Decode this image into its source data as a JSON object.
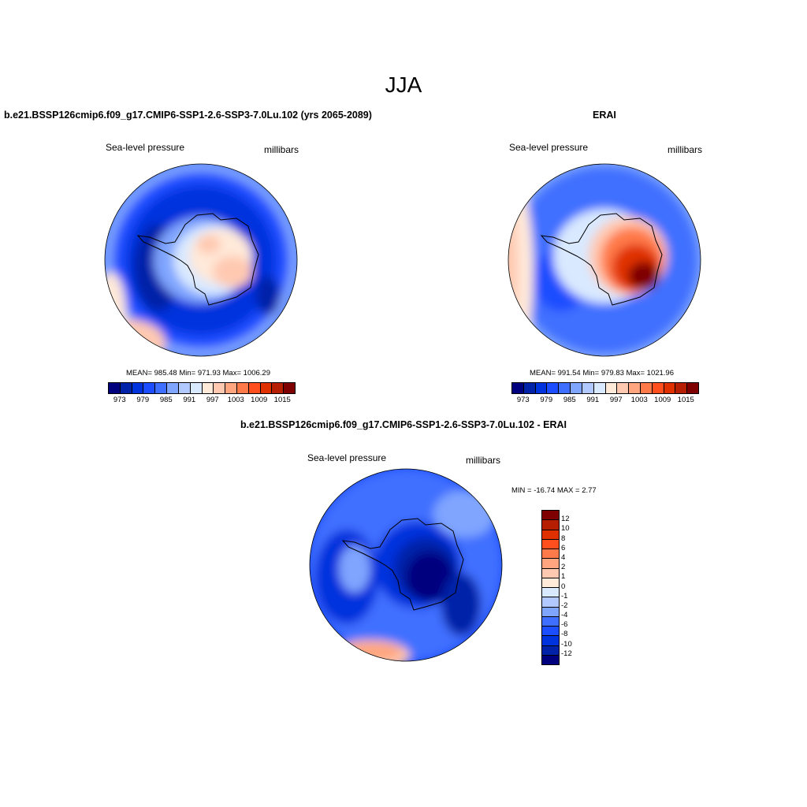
{
  "title": "JJA",
  "panels": [
    {
      "title": "b.e21.BSSP126cmip6.f09_g17.CMIP6-SSP1-2.6-SSP3-7.0Lu.102 (yrs 2065-2089)",
      "left_label": "Sea-level pressure",
      "right_label": "millibars",
      "stats": "MEAN= 985.48  Min= 971.93  Max= 1006.29"
    },
    {
      "title": "ERAI",
      "left_label": "Sea-level pressure",
      "right_label": "millibars",
      "stats": "MEAN= 991.54  Min= 979.83  Max= 1021.96"
    },
    {
      "title": "b.e21.BSSP126cmip6.f09_g17.CMIP6-SSP1-2.6-SSP3-7.0Lu.102 - ERAI",
      "left_label": "Sea-level pressure",
      "right_label": "millibars",
      "stats": "MIN = -16.74 MAX =   2.77"
    }
  ],
  "colorbar_labels": [
    "973",
    "979",
    "985",
    "991",
    "997",
    "1003",
    "1009",
    "1015"
  ],
  "diff_colorbar_labels": [
    "12",
    "10",
    "8",
    "6",
    "4",
    "2",
    "1",
    "0",
    "-1",
    "-2",
    "-4",
    "-6",
    "-8",
    "-10",
    "-12"
  ],
  "colors": [
    "#00007f",
    "#0022a8",
    "#0033dd",
    "#1c4dff",
    "#3f6fff",
    "#7fa5ff",
    "#b1c9ff",
    "#d9e9ff",
    "#ffe9d9",
    "#ffc9b1",
    "#ffa57f",
    "#ff7a4a",
    "#ff4f1f",
    "#e03000",
    "#b51e00",
    "#7f0000"
  ],
  "chart_data": {
    "type": "heatmap",
    "projection": "south polar stereographic",
    "levels_abs": [
      973,
      976,
      979,
      982,
      985,
      988,
      991,
      994,
      997,
      1000,
      1003,
      1006,
      1009,
      1012,
      1015
    ],
    "levels_diff": [
      -12,
      -10,
      -8,
      -6,
      -4,
      -2,
      -1,
      0,
      1,
      2,
      4,
      6,
      8,
      10,
      12
    ]
  }
}
